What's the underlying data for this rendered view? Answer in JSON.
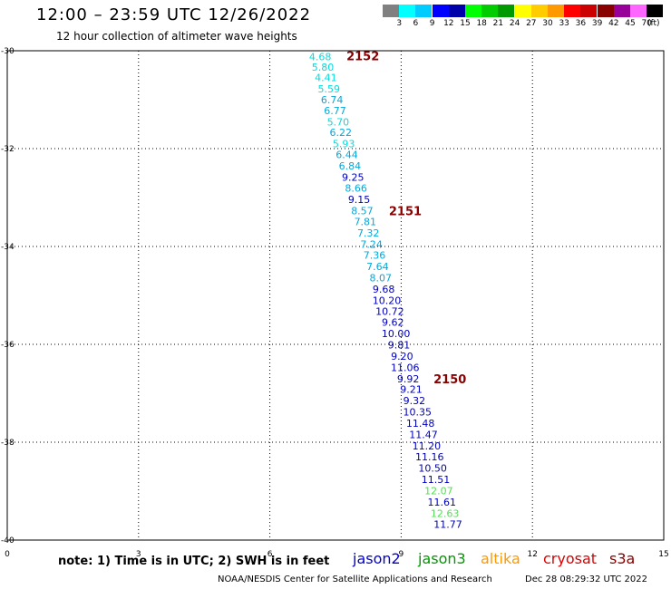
{
  "header": {
    "title": "12:00 – 23:59 UTC 12/26/2022",
    "subtitle": "12 hour collection of altimeter wave heights"
  },
  "colorbar": {
    "unit": "(ft)",
    "bins": [
      {
        "label": "",
        "color": "#808080"
      },
      {
        "label": "3",
        "color": "#00ffff"
      },
      {
        "label": "6",
        "color": "#00ccff"
      },
      {
        "label": "9",
        "color": "#0000ff"
      },
      {
        "label": "12",
        "color": "#0000aa"
      },
      {
        "label": "15",
        "color": "#00ff00"
      },
      {
        "label": "18",
        "color": "#00cc00"
      },
      {
        "label": "21",
        "color": "#009900"
      },
      {
        "label": "24",
        "color": "#ffff00"
      },
      {
        "label": "27",
        "color": "#ffcc00"
      },
      {
        "label": "30",
        "color": "#ff9900"
      },
      {
        "label": "33",
        "color": "#ff0000"
      },
      {
        "label": "36",
        "color": "#cc0000"
      },
      {
        "label": "39",
        "color": "#880000"
      },
      {
        "label": "42",
        "color": "#990099"
      },
      {
        "label": "45",
        "color": "#ff66ff"
      },
      {
        "label": "70",
        "color": "#000000"
      }
    ]
  },
  "footer": {
    "note": "note:  1) Time is in UTC;  2) SWH is in feet",
    "satellites": [
      {
        "name": "jason2",
        "color": "#0000cc"
      },
      {
        "name": "jason3",
        "color": "#009900"
      },
      {
        "name": "altika",
        "color": "#ff9900"
      },
      {
        "name": "cryosat",
        "color": "#dd0000"
      },
      {
        "name": "s3a",
        "color": "#880000"
      }
    ],
    "credit": "NOAA/NESDIS Center for Satellite Applications and Research",
    "timestamp": "Dec 28 08:29:32 UTC 2022"
  },
  "chart_data": {
    "type": "scatter",
    "title": "12:00 – 23:59 UTC 12/26/2022",
    "subtitle": "12 hour collection of altimeter wave heights",
    "xlim": [
      0,
      15
    ],
    "ylim": [
      -40,
      -30
    ],
    "x_ticks": [
      "0",
      "3",
      "6",
      "9",
      "12",
      "15"
    ],
    "x_tick_values": [
      0,
      3,
      6,
      9,
      12,
      15
    ],
    "y_ticks": [
      "-30",
      "-32",
      "-34",
      "-36",
      "-38",
      "-40"
    ],
    "y_tick_values": [
      -30,
      -32,
      -34,
      -36,
      -38,
      -40
    ],
    "grid": true,
    "points": [
      {
        "x": 7.15,
        "y": -30.12,
        "label": "4.68",
        "color": "#00dddd"
      },
      {
        "x": 7.21,
        "y": -30.33,
        "label": "5.80",
        "color": "#00dddd"
      },
      {
        "x": 7.28,
        "y": -30.55,
        "label": "4.41",
        "color": "#00dddd"
      },
      {
        "x": 7.35,
        "y": -30.78,
        "label": "5.59",
        "color": "#00dddd"
      },
      {
        "x": 7.42,
        "y": -31.0,
        "label": "6.74",
        "color": "#00aadd"
      },
      {
        "x": 7.49,
        "y": -31.22,
        "label": "6.77",
        "color": "#00aadd"
      },
      {
        "x": 7.56,
        "y": -31.45,
        "label": "5.70",
        "color": "#00dddd"
      },
      {
        "x": 7.62,
        "y": -31.67,
        "label": "6.22",
        "color": "#00aadd"
      },
      {
        "x": 7.69,
        "y": -31.9,
        "label": "5.93",
        "color": "#00dddd"
      },
      {
        "x": 7.76,
        "y": -32.12,
        "label": "6.44",
        "color": "#00aadd"
      },
      {
        "x": 7.83,
        "y": -32.35,
        "label": "6.84",
        "color": "#00aadd"
      },
      {
        "x": 7.9,
        "y": -32.58,
        "label": "9.25",
        "color": "#0000bb"
      },
      {
        "x": 7.97,
        "y": -32.81,
        "label": "8.66",
        "color": "#00aadd"
      },
      {
        "x": 8.04,
        "y": -33.04,
        "label": "9.15",
        "color": "#0000bb"
      },
      {
        "x": 8.11,
        "y": -33.27,
        "label": "8.57",
        "color": "#00aadd"
      },
      {
        "x": 8.18,
        "y": -33.49,
        "label": "7.81",
        "color": "#00aadd"
      },
      {
        "x": 8.25,
        "y": -33.72,
        "label": "7.32",
        "color": "#00aadd"
      },
      {
        "x": 8.32,
        "y": -33.95,
        "label": "7.24",
        "color": "#00aadd"
      },
      {
        "x": 8.39,
        "y": -34.18,
        "label": "7.36",
        "color": "#00aadd"
      },
      {
        "x": 8.46,
        "y": -34.41,
        "label": "7.64",
        "color": "#00aadd"
      },
      {
        "x": 8.53,
        "y": -34.64,
        "label": "8.07",
        "color": "#00aadd"
      },
      {
        "x": 8.6,
        "y": -34.87,
        "label": "9.68",
        "color": "#0000bb"
      },
      {
        "x": 8.67,
        "y": -35.1,
        "label": "10.20",
        "color": "#0000bb"
      },
      {
        "x": 8.74,
        "y": -35.32,
        "label": "10.72",
        "color": "#0000bb"
      },
      {
        "x": 8.81,
        "y": -35.55,
        "label": "9.62",
        "color": "#0000bb"
      },
      {
        "x": 8.88,
        "y": -35.78,
        "label": "10.00",
        "color": "#0000bb"
      },
      {
        "x": 8.95,
        "y": -36.01,
        "label": "9.81",
        "color": "#0000bb"
      },
      {
        "x": 9.02,
        "y": -36.24,
        "label": "9.20",
        "color": "#0000bb"
      },
      {
        "x": 9.09,
        "y": -36.47,
        "label": "11.06",
        "color": "#0000bb"
      },
      {
        "x": 9.16,
        "y": -36.7,
        "label": "9.92",
        "color": "#0000bb"
      },
      {
        "x": 9.23,
        "y": -36.92,
        "label": "9.21",
        "color": "#0000bb"
      },
      {
        "x": 9.3,
        "y": -37.15,
        "label": "9.32",
        "color": "#0000bb"
      },
      {
        "x": 9.37,
        "y": -37.38,
        "label": "10.35",
        "color": "#0000bb"
      },
      {
        "x": 9.44,
        "y": -37.61,
        "label": "11.48",
        "color": "#0000bb"
      },
      {
        "x": 9.51,
        "y": -37.84,
        "label": "11.47",
        "color": "#0000bb"
      },
      {
        "x": 9.58,
        "y": -38.07,
        "label": "11.20",
        "color": "#0000bb"
      },
      {
        "x": 9.65,
        "y": -38.3,
        "label": "11.16",
        "color": "#0000bb"
      },
      {
        "x": 9.72,
        "y": -38.53,
        "label": "10.50",
        "color": "#0000bb"
      },
      {
        "x": 9.79,
        "y": -38.76,
        "label": "11.51",
        "color": "#0000bb"
      },
      {
        "x": 9.86,
        "y": -38.99,
        "label": "12.07",
        "color": "#55dd55"
      },
      {
        "x": 9.93,
        "y": -39.22,
        "label": "11.61",
        "color": "#0000bb"
      },
      {
        "x": 10.0,
        "y": -39.45,
        "label": "12.63",
        "color": "#55dd55"
      },
      {
        "x": 10.07,
        "y": -39.68,
        "label": "11.77",
        "color": "#0000bb"
      }
    ],
    "annotations": [
      {
        "x": 7.75,
        "y": -30.1,
        "text": "2152",
        "color": "#880000"
      },
      {
        "x": 8.72,
        "y": -33.27,
        "text": "2151",
        "color": "#880000"
      },
      {
        "x": 9.74,
        "y": -36.7,
        "text": "2150",
        "color": "#880000"
      }
    ]
  }
}
